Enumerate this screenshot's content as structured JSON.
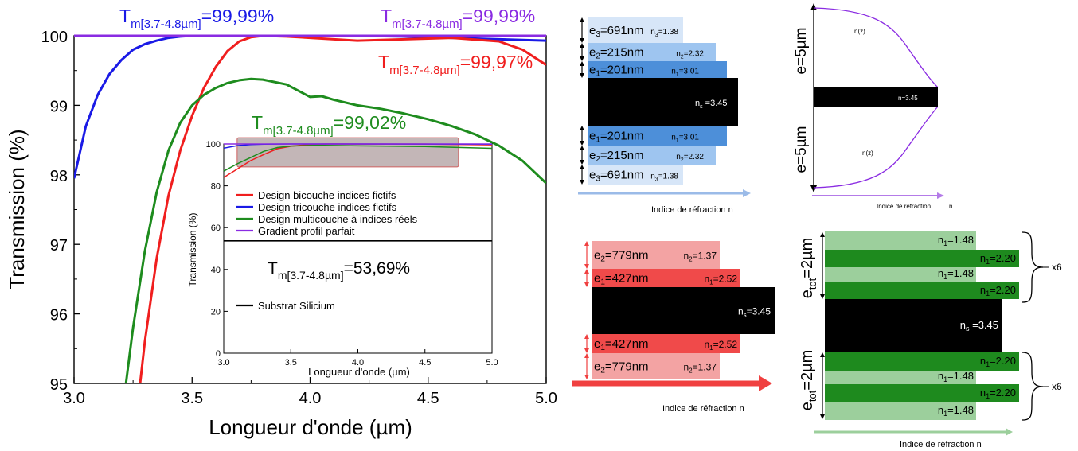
{
  "chart_data": {
    "type": "line",
    "xlabel": "Longueur d'onde (µm)",
    "ylabel": "Transmission (%)",
    "xlim": [
      3.0,
      5.0
    ],
    "ylim": [
      95,
      100
    ],
    "xticks": [
      "3.0",
      "3.5",
      "4.0",
      "4.5",
      "5.0"
    ],
    "yticks": [
      "95",
      "96",
      "97",
      "98",
      "99",
      "100"
    ],
    "grid": false,
    "series": [
      {
        "key": "blue",
        "color": "#1a1ae6",
        "x": [
          3.0,
          3.05,
          3.1,
          3.15,
          3.2,
          3.25,
          3.3,
          3.35,
          3.4,
          3.45,
          3.5,
          3.6,
          3.7,
          3.8,
          4.0,
          4.2,
          4.4,
          4.6,
          4.8,
          5.0
        ],
        "y": [
          97.95,
          98.7,
          99.15,
          99.45,
          99.65,
          99.8,
          99.88,
          99.93,
          99.97,
          99.99,
          100.0,
          100.0,
          100.0,
          100.0,
          100.0,
          100.0,
          99.99,
          99.97,
          99.95,
          99.93
        ]
      },
      {
        "key": "red",
        "color": "#f01e1e",
        "x": [
          3.28,
          3.3,
          3.35,
          3.4,
          3.45,
          3.5,
          3.55,
          3.6,
          3.65,
          3.7,
          3.75,
          3.8,
          3.9,
          4.0,
          4.2,
          4.4,
          4.6,
          4.8,
          4.9,
          5.0
        ],
        "y": [
          95.0,
          95.6,
          96.8,
          97.7,
          98.35,
          98.85,
          99.25,
          99.55,
          99.78,
          99.92,
          99.98,
          100.0,
          99.99,
          99.97,
          99.93,
          99.95,
          99.97,
          99.92,
          99.8,
          99.58
        ]
      },
      {
        "key": "green",
        "color": "#1e8c1e",
        "x": [
          3.22,
          3.25,
          3.3,
          3.35,
          3.4,
          3.45,
          3.5,
          3.55,
          3.6,
          3.65,
          3.7,
          3.75,
          3.8,
          3.9,
          4.0,
          4.05,
          4.1,
          4.2,
          4.3,
          4.4,
          4.5,
          4.6,
          4.7,
          4.8,
          4.9,
          5.0
        ],
        "y": [
          95.0,
          95.8,
          96.9,
          97.75,
          98.35,
          98.75,
          99.0,
          99.15,
          99.25,
          99.32,
          99.36,
          99.38,
          99.37,
          99.3,
          99.12,
          99.13,
          99.08,
          99.0,
          98.95,
          98.88,
          98.8,
          98.7,
          98.58,
          98.42,
          98.2,
          97.88
        ]
      },
      {
        "key": "purple",
        "color": "#8a2be2",
        "x": [
          3.0,
          3.5,
          4.0,
          4.5,
          5.0
        ],
        "y": [
          100.0,
          100.0,
          100.0,
          100.0,
          100.0
        ]
      }
    ],
    "annotations": {
      "blue": {
        "main": "T",
        "sub": "m[3.7-4.8µm]",
        "value": "=99,99%"
      },
      "purple": {
        "main": "T",
        "sub": "m[3.7-4.8µm]",
        "value": "=99,99%"
      },
      "red": {
        "main": "T",
        "sub": "m[3.7-4.8µm]",
        "value": "=99,97%"
      },
      "green": {
        "main": "T",
        "sub": "m[3.7-4.8µm]",
        "value": "=99,02%"
      },
      "black": {
        "main": "T",
        "sub": "m[3.7-4.8µm]",
        "value": "=53,69%"
      }
    },
    "inset": {
      "xlabel": "Longueur d'onde (µm)",
      "ylabel": "Transmission (%)",
      "xlim": [
        3.0,
        5.0
      ],
      "ylim": [
        0,
        100
      ],
      "xticks": [
        "3.0",
        "3.5",
        "4.0",
        "4.5",
        "5.0"
      ],
      "yticks": [
        "0",
        "20",
        "40",
        "60",
        "80",
        "100"
      ],
      "highlight_y": [
        89,
        103
      ],
      "highlight_x": [
        3.1,
        4.75
      ],
      "series": [
        {
          "key": "red",
          "color": "#f01e1e",
          "x": [
            3.0,
            3.1,
            3.2,
            3.3,
            3.4,
            3.5,
            3.6,
            3.7,
            3.8,
            4.0,
            4.5,
            5.0
          ],
          "y": [
            84,
            88,
            92,
            95,
            97.7,
            98.9,
            99.5,
            99.9,
            100,
            99.98,
            99.95,
            99.6
          ]
        },
        {
          "key": "blue",
          "color": "#1a1ae6",
          "x": [
            3.0,
            3.1,
            3.2,
            3.3,
            3.4,
            3.5,
            4.0,
            5.0
          ],
          "y": [
            98,
            99.2,
            99.7,
            99.9,
            99.97,
            100,
            100,
            99.93
          ]
        },
        {
          "key": "green",
          "color": "#1e8c1e",
          "x": [
            3.0,
            3.1,
            3.2,
            3.3,
            3.4,
            3.5,
            3.7,
            4.0,
            4.5,
            5.0
          ],
          "y": [
            87,
            90.5,
            93.5,
            96.5,
            98.3,
            99,
            99.4,
            99.1,
            98.8,
            97.9
          ]
        },
        {
          "key": "purple",
          "color": "#8a2be2",
          "x": [
            3.0,
            5.0
          ],
          "y": [
            100,
            100
          ]
        },
        {
          "key": "black",
          "color": "#000000",
          "x": [
            3.0,
            5.0
          ],
          "y": [
            53.69,
            53.69
          ]
        }
      ],
      "legend": [
        {
          "label": "Design bicouche indices fictifs",
          "color": "#f01e1e"
        },
        {
          "label": "Design tricouche indices fictifs",
          "color": "#1a1ae6"
        },
        {
          "label": "Design multicouche à indices réels",
          "color": "#1e8c1e"
        },
        {
          "label": "Gradient profil parfait",
          "color": "#8a2be2"
        }
      ],
      "legend_black": {
        "label": "Substrat Silicium",
        "color": "#000000"
      }
    }
  },
  "diagrams": {
    "tricouche": {
      "layers": [
        {
          "e": "e",
          "sub": "3",
          "val": "=691nm",
          "n": "n",
          "nsub": "3",
          "nval": "=1.38"
        },
        {
          "e": "e",
          "sub": "2",
          "val": "=215nm",
          "n": "n",
          "nsub": "2",
          "nval": "=2.32"
        },
        {
          "e": "e",
          "sub": "1",
          "val": "=201nm",
          "n": "n",
          "nsub": "1",
          "nval": "=3.01"
        },
        {
          "e": "",
          "sub": "",
          "val": "",
          "n": "n",
          "nsub": "s",
          "nval": " =3.45"
        },
        {
          "e": "e",
          "sub": "1",
          "val": "=201nm",
          "n": "n",
          "nsub": "1",
          "nval": "=3.01"
        },
        {
          "e": "e",
          "sub": "2",
          "val": "=215nm",
          "n": "n",
          "nsub": "2",
          "nval": "=2.32"
        },
        {
          "e": "e",
          "sub": "3",
          "val": "=691nm",
          "n": "n",
          "nsub": "3",
          "nval": "=1.38"
        }
      ],
      "axis_label": "Indice de réfraction  n"
    },
    "gradient": {
      "top_label": "e=5µm",
      "bottom_label": "e=5µm",
      "nz_top": "n(z)",
      "nz_bottom": "n(z)",
      "ns": "n=3.45",
      "axis_label": "Indice de réfraction",
      "axis_n": "n"
    },
    "bicouche": {
      "layers": [
        {
          "e": "e",
          "sub": "2",
          "val": "=779nm",
          "n": "n",
          "nsub": "2",
          "nval": "=1.37"
        },
        {
          "e": "e",
          "sub": "1",
          "val": "=427nm",
          "n": "n",
          "nsub": "1",
          "nval": "=2.52"
        },
        {
          "e": "",
          "sub": "",
          "val": "",
          "n": "n",
          "nsub": "s",
          "nval": "=3.45"
        },
        {
          "e": "e",
          "sub": "1",
          "val": "=427nm",
          "n": "n",
          "nsub": "1",
          "nval": "=2.52"
        },
        {
          "e": "e",
          "sub": "2",
          "val": "=779nm",
          "n": "n",
          "nsub": "2",
          "nval": "=1.37"
        }
      ],
      "axis_label": "Indice de réfraction   n"
    },
    "multicouche": {
      "top_label": "e",
      "top_sub": "tot",
      "top_val": "=2µm",
      "bottom_label": "e",
      "bottom_sub": "tot",
      "bottom_val": "=2µm",
      "layers_top": [
        {
          "n": "n",
          "nsub": "1",
          "nval": "=1.48"
        },
        {
          "n": "n",
          "nsub": "1",
          "nval": "=2.20"
        },
        {
          "n": "n",
          "nsub": "1",
          "nval": "=1.48"
        },
        {
          "n": "n",
          "nsub": "1",
          "nval": "=2.20"
        }
      ],
      "substrate": {
        "n": "n",
        "nsub": "s",
        "nval": " =3.45"
      },
      "layers_bottom": [
        {
          "n": "n",
          "nsub": "1",
          "nval": "=2.20"
        },
        {
          "n": "n",
          "nsub": "1",
          "nval": "=1.48"
        },
        {
          "n": "n",
          "nsub": "1",
          "nval": "=2.20"
        },
        {
          "n": "n",
          "nsub": "1",
          "nval": "=1.48"
        }
      ],
      "repeat": "x6",
      "axis_label": "Indice de réfraction n"
    }
  }
}
